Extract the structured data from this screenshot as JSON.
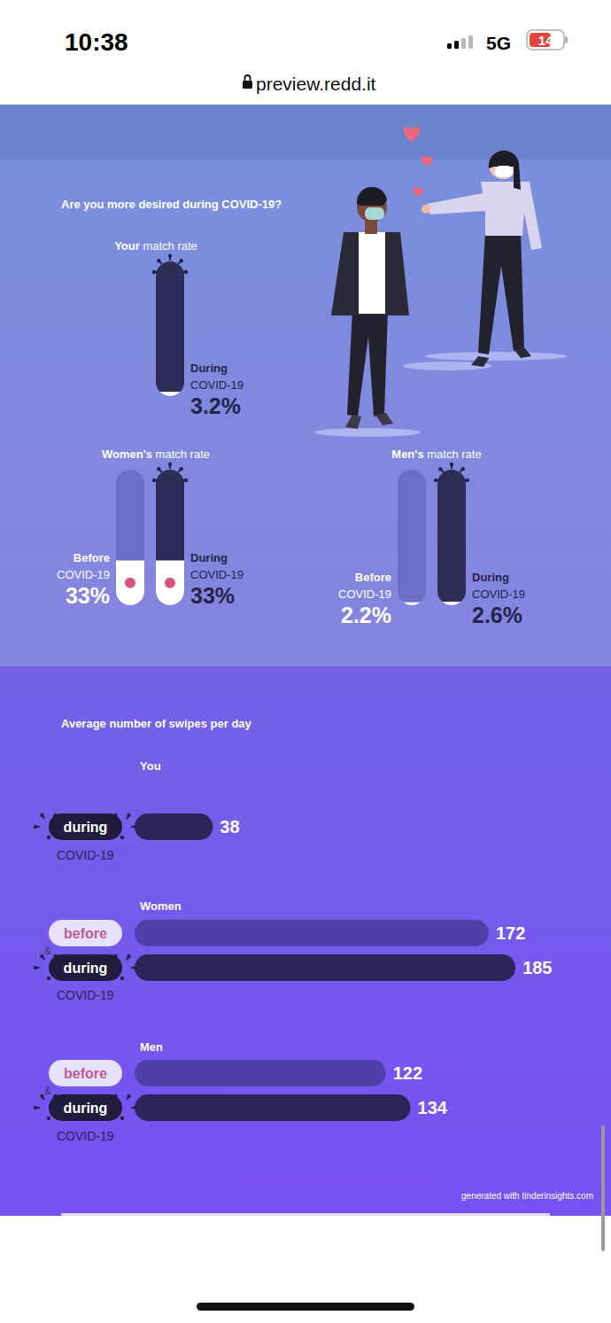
{
  "status_bar": {
    "time": "10:38",
    "network": "5G",
    "battery": "14"
  },
  "browser": {
    "url": "preview.redd.it"
  },
  "chart_data": [
    {
      "type": "bar",
      "title": "Are you more desired during COVID-19?",
      "subtitle": "Your match rate",
      "categories": [
        "During COVID-19"
      ],
      "values": [
        3.2
      ],
      "value_labels": [
        "3.2%"
      ],
      "ylim": [
        0,
        100
      ],
      "colors": [
        "#2e2d57"
      ],
      "data_labels": true,
      "tick_labels": false
    },
    {
      "type": "bar",
      "subtitle": "Women's match rate",
      "categories": [
        "Before COVID-19",
        "During COVID-19"
      ],
      "values": [
        33,
        33
      ],
      "value_labels": [
        "33%",
        "33%"
      ],
      "ylim": [
        0,
        100
      ],
      "colors": [
        "#6a6ec4",
        "#2e2d57"
      ],
      "data_labels": true,
      "tick_labels": false
    },
    {
      "type": "bar",
      "subtitle": "Men's match rate",
      "categories": [
        "Before COVID-19",
        "During COVID-19"
      ],
      "values": [
        2.2,
        2.6
      ],
      "value_labels": [
        "2.2%",
        "2.6%"
      ],
      "ylim": [
        0,
        100
      ],
      "colors": [
        "#6a6ec4",
        "#2e2d57"
      ],
      "data_labels": true,
      "tick_labels": false
    },
    {
      "type": "bar",
      "orientation": "horizontal",
      "title": "Average number of swipes per day",
      "subtitle": "You",
      "categories": [
        "during"
      ],
      "annotations": {
        "period": "COVID-19"
      },
      "values": [
        38
      ],
      "xlim": [
        0,
        200
      ],
      "colors": [
        "#2c2559"
      ],
      "data_labels": true,
      "tick_labels": false
    },
    {
      "type": "bar",
      "orientation": "horizontal",
      "subtitle": "Women",
      "categories": [
        "before",
        "during"
      ],
      "annotations": {
        "joiner": "&",
        "period": "COVID-19"
      },
      "values": [
        172,
        185
      ],
      "xlim": [
        0,
        200
      ],
      "colors": [
        "#4e3fa9",
        "#2c2559"
      ],
      "data_labels": true,
      "tick_labels": false
    },
    {
      "type": "bar",
      "orientation": "horizontal",
      "subtitle": "Men",
      "categories": [
        "before",
        "during"
      ],
      "annotations": {
        "joiner": "&",
        "period": "COVID-19"
      },
      "values": [
        122,
        134
      ],
      "xlim": [
        0,
        200
      ],
      "colors": [
        "#4e3fa9",
        "#2c2559"
      ],
      "data_labels": true,
      "tick_labels": false
    }
  ],
  "footer": "generated with tinderinsights.com"
}
